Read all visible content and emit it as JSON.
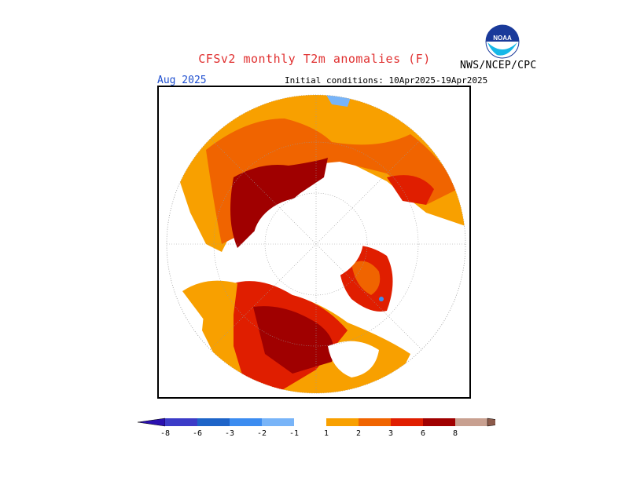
{
  "title": "CFSv2 monthly T2m anomalies (F)",
  "agency": "NWS/NCEP/CPC",
  "logo_text": "NOAA",
  "month": "Aug 2025",
  "initial_conditions": "Initial conditions: 10Apr2025-19Apr2025",
  "legend": {
    "bins": [
      {
        "color": "#2a10b0"
      },
      {
        "color": "#3c3cc8",
        "label": "-8"
      },
      {
        "color": "#1e64c8",
        "label": "-6"
      },
      {
        "color": "#3c8cf0",
        "label": "-3"
      },
      {
        "color": "#78b4f8",
        "label": "-2"
      },
      {
        "color": "#ffffff",
        "label": "-1"
      },
      {
        "color": "#f8a000",
        "label": "1"
      },
      {
        "color": "#f06400",
        "label": "2"
      },
      {
        "color": "#e01e00",
        "label": "3"
      },
      {
        "color": "#a00000",
        "label": "6"
      },
      {
        "color": "#c8a090",
        "label": "8"
      },
      {
        "color": "#8c5a4a"
      }
    ]
  },
  "colors": {
    "warm1": "#f8a000",
    "warm2": "#f06400",
    "warm3": "#e01e00",
    "warm4": "#a00000",
    "cool": "#78b4f8",
    "blue_dot": "#3c8cf0"
  }
}
